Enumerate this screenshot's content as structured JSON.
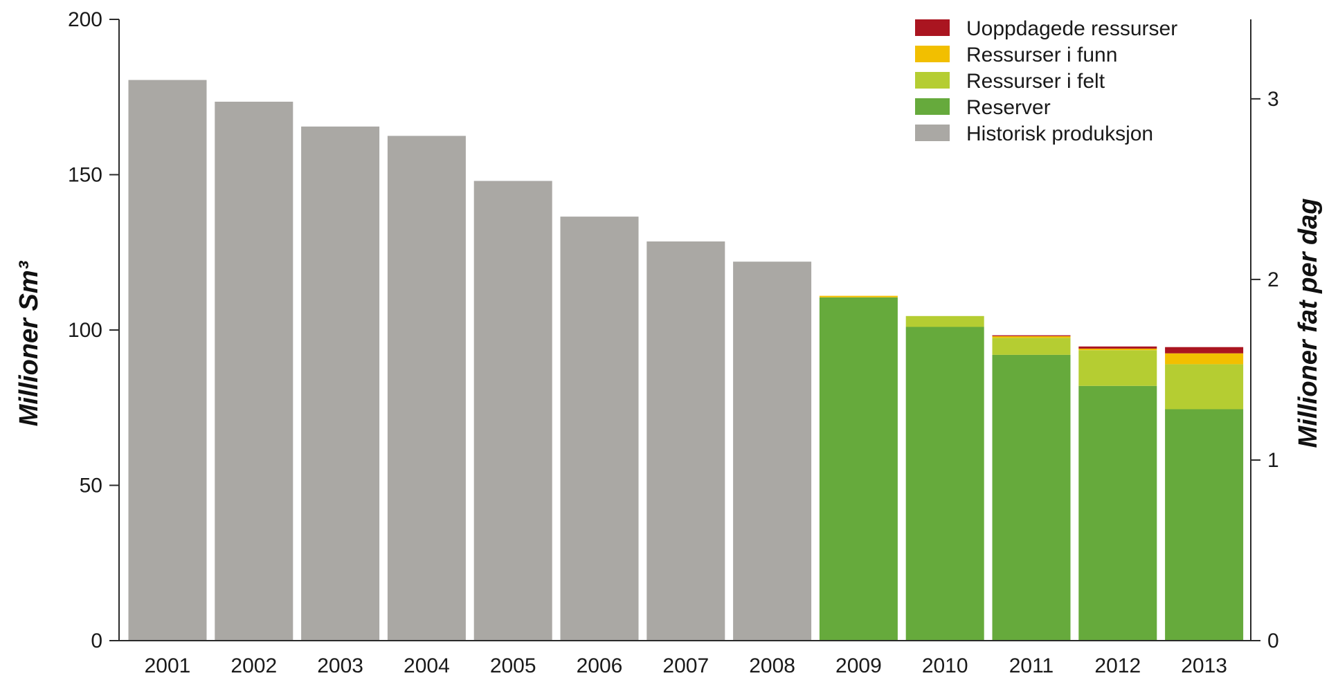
{
  "chart_data": {
    "type": "bar",
    "stacked": true,
    "categories": [
      "2001",
      "2002",
      "2003",
      "2004",
      "2005",
      "2006",
      "2007",
      "2008",
      "2009",
      "2010",
      "2011",
      "2012",
      "2013"
    ],
    "series": [
      {
        "name": "Historisk produksjon",
        "color": "#aaa8a4",
        "values": [
          180.5,
          173.5,
          165.5,
          162.5,
          148,
          136.5,
          128.5,
          122,
          0,
          0,
          0,
          0,
          0
        ]
      },
      {
        "name": "Reserver",
        "color": "#66aa3c",
        "values": [
          0,
          0,
          0,
          0,
          0,
          0,
          0,
          0,
          110.5,
          101,
          92,
          82,
          74.5
        ]
      },
      {
        "name": "Ressurser i felt",
        "color": "#b5cd32",
        "values": [
          0,
          0,
          0,
          0,
          0,
          0,
          0,
          0,
          0,
          3.5,
          5.5,
          11.5,
          14.5
        ]
      },
      {
        "name": "Ressurser i funn",
        "color": "#f2bf00",
        "values": [
          0,
          0,
          0,
          0,
          0,
          0,
          0,
          0,
          0.5,
          0,
          0.5,
          0.5,
          3.5
        ]
      },
      {
        "name": "Uoppdagede ressurser",
        "color": "#aa1520",
        "values": [
          0,
          0,
          0,
          0,
          0,
          0,
          0,
          0,
          0,
          0,
          0.3,
          0.7,
          2
        ]
      }
    ],
    "legend_order": [
      "Uoppdagede ressurser",
      "Ressurser i funn",
      "Ressurser i felt",
      "Reserver",
      "Historisk produksjon"
    ],
    "legend_position": "top-right",
    "ylabel": "Millioner Sm³",
    "y2label": "Millioner fat per dag",
    "ylim": [
      0,
      200
    ],
    "yticks": [
      0,
      50,
      100,
      150,
      200
    ],
    "y2lim": [
      0,
      3.44
    ],
    "y2ticks": [
      0,
      1,
      2,
      3
    ],
    "grid": false
  }
}
